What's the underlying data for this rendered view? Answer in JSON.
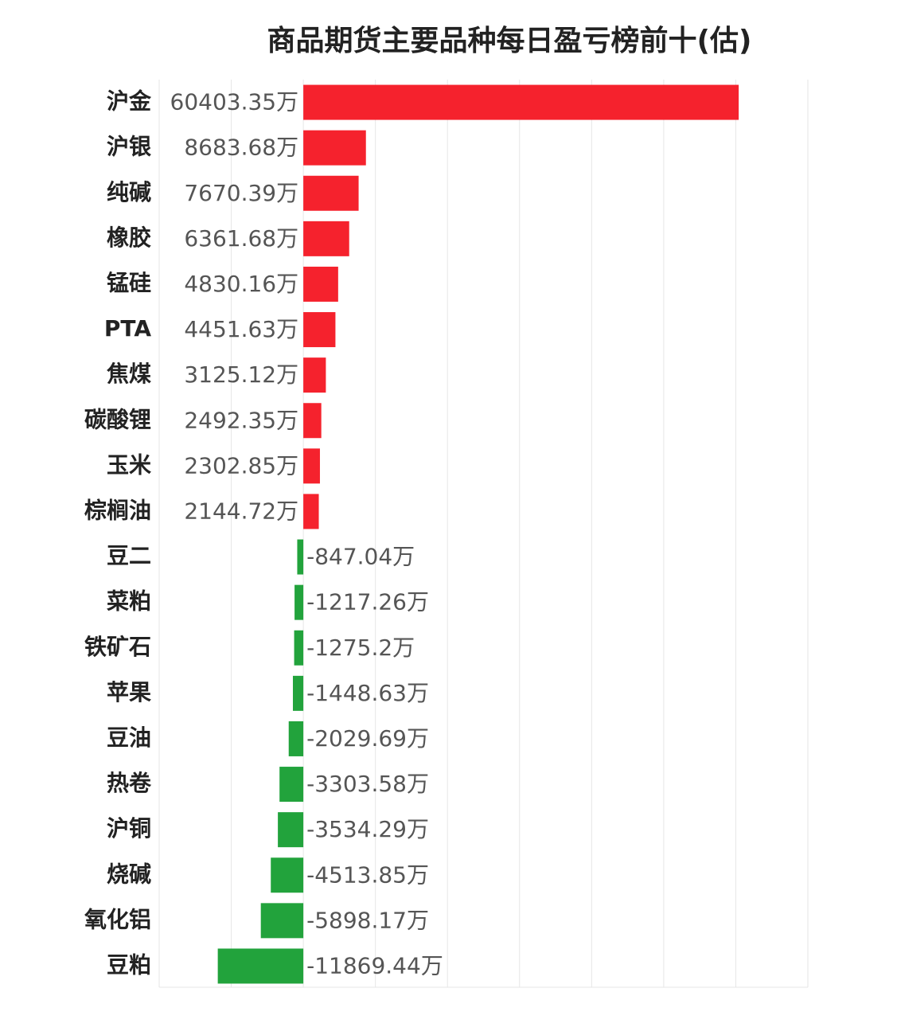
{
  "chart_data": {
    "type": "bar",
    "orientation": "horizontal",
    "title": "商品期货主要品种每日盈亏榜前十(估)",
    "unit": "万",
    "categories": [
      "沪金",
      "沪银",
      "纯碱",
      "橡胶",
      "锰硅",
      "PTA",
      "焦煤",
      "碳酸锂",
      "玉米",
      "棕榈油",
      "豆二",
      "菜粕",
      "铁矿石",
      "苹果",
      "豆油",
      "热卷",
      "沪铜",
      "烧碱",
      "氧化铝",
      "豆粕"
    ],
    "values": [
      60403.35,
      8683.68,
      7670.39,
      6361.68,
      4830.16,
      4451.63,
      3125.12,
      2492.35,
      2302.85,
      2144.72,
      -847.04,
      -1217.26,
      -1275.2,
      -1448.63,
      -2029.69,
      -3303.58,
      -3534.29,
      -4513.85,
      -5898.17,
      -11869.44
    ],
    "value_labels": [
      "60403.35万",
      "8683.68万",
      "7670.39万",
      "6361.68万",
      "4830.16万",
      "4451.63万",
      "3125.12万",
      "2492.35万",
      "2302.85万",
      "2144.72万",
      "-847.04万",
      "-1217.26万",
      "-1275.2万",
      "-1448.63万",
      "-2029.69万",
      "-3303.58万",
      "-3534.29万",
      "-4513.85万",
      "-5898.17万",
      "-11869.44万"
    ],
    "xlim": [
      -20000,
      70000
    ],
    "grid_step": 10000,
    "grid": true,
    "legend": "none",
    "colors": {
      "positive": "#f5222d",
      "negative": "#22a33c",
      "grid": "#e6e6e6",
      "label": "#222222",
      "value_label": "#555555"
    }
  }
}
